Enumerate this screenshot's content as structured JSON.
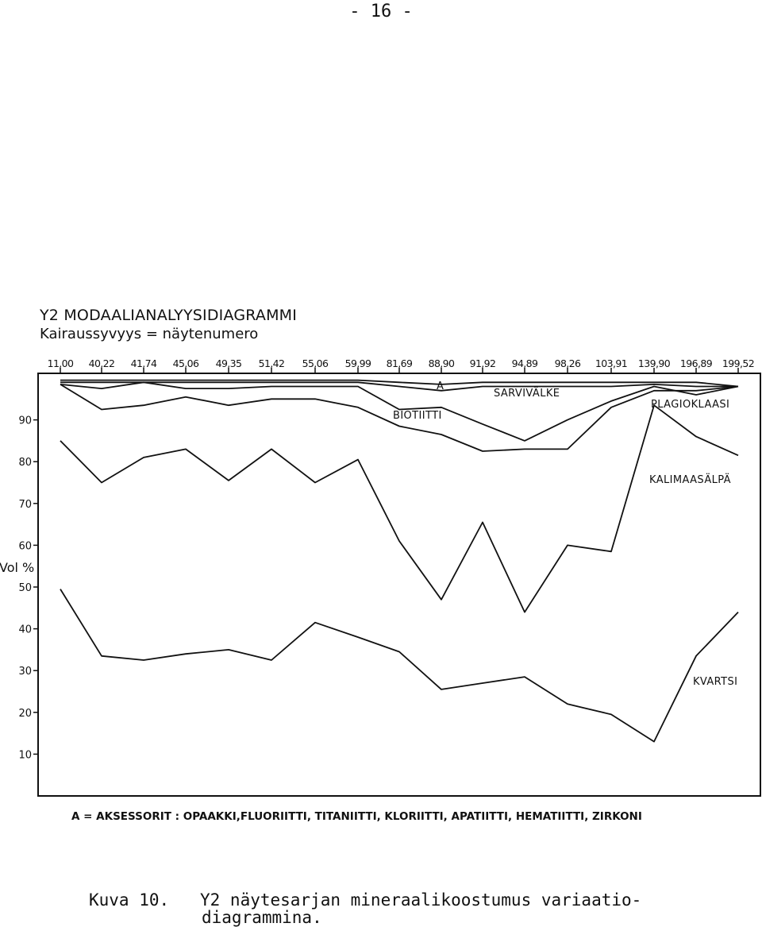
{
  "page_number": "- 16 -",
  "caption": {
    "label": "Kuva 10.",
    "line1": "Y2 näytesarjan mineraalikoostumus variaatio-",
    "line2": "diagrammina."
  },
  "chart_data": {
    "type": "area",
    "title": "Y2  MODAALIANALYYSIDIAGRAMMI",
    "subtitle": "Kairaussyvyys = näytenumero",
    "ylabel": "Vol %",
    "ylim": [
      0,
      100
    ],
    "yticks": [
      "10",
      "20",
      "30",
      "40",
      "50",
      "60",
      "70",
      "80",
      "90"
    ],
    "ytick_values": [
      10,
      20,
      30,
      40,
      50,
      60,
      70,
      80,
      90
    ],
    "categories": [
      "11,00",
      "40,22",
      "41,74",
      "45,06",
      "49,35",
      "51,42",
      "55,06",
      "59,99",
      "81,69",
      "88,90",
      "91,92",
      "94,89",
      "98,26",
      "103,91",
      "139,90",
      "196,89",
      "199,52"
    ],
    "note": "A = AKSESSORIT : OPAAKKI,FLUORIITTI, TITANIITTI, KLORIITTI, APATIITTI, HEMATIITTI, ZIRKONI",
    "series": [
      {
        "name": "KVARTSI",
        "values": [
          49.5,
          33.5,
          32.5,
          34,
          35,
          32.5,
          41.5,
          38,
          34.5,
          25.5,
          27,
          28.5,
          22,
          19.5,
          13,
          33.5,
          44
        ]
      },
      {
        "name": "KALIMAASÄLPÄ",
        "values": [
          85,
          75,
          81,
          83,
          75.5,
          83,
          75,
          80.5,
          61,
          47,
          65.5,
          44,
          60,
          58.5,
          93.5,
          86,
          81.5
        ]
      },
      {
        "name": "PLAGIOKLAASI",
        "values": [
          98.5,
          92.5,
          93.5,
          95.5,
          93.5,
          95,
          95,
          93,
          88.5,
          86.5,
          82.5,
          83,
          83,
          93,
          97,
          97,
          98
        ]
      },
      {
        "name": "BIOTIITTI",
        "values": [
          98.5,
          97.5,
          99,
          97.5,
          97.5,
          98,
          98,
          98,
          92.5,
          93,
          89,
          85,
          90,
          94.5,
          98,
          96,
          98
        ]
      },
      {
        "name": "SARVIVÄLKE",
        "values": [
          99,
          99,
          99,
          99,
          99,
          99,
          99,
          99,
          98,
          97,
          98,
          98,
          98,
          98,
          98.5,
          98,
          98
        ]
      },
      {
        "name": "A",
        "values": [
          99.5,
          99.5,
          99.5,
          99.5,
          99.5,
          99.5,
          99.5,
          99.5,
          99,
          98.5,
          99,
          99,
          99,
          99,
          99,
          99,
          98
        ]
      }
    ],
    "labels": [
      {
        "text": "KVARTSI",
        "series": "KVARTSI"
      },
      {
        "text": "KALIMAASÄLPÄ",
        "series": "KALIMAASÄLPÄ"
      },
      {
        "text": "PLAGIOKLAASI",
        "series": "PLAGIOKLAASI"
      },
      {
        "text": "BIOTIITTI",
        "series": "BIOTIITTI"
      },
      {
        "text": "SARVIVÄLKE",
        "series": "SARVIVÄLKE"
      },
      {
        "text": "A",
        "series": "A"
      }
    ]
  }
}
